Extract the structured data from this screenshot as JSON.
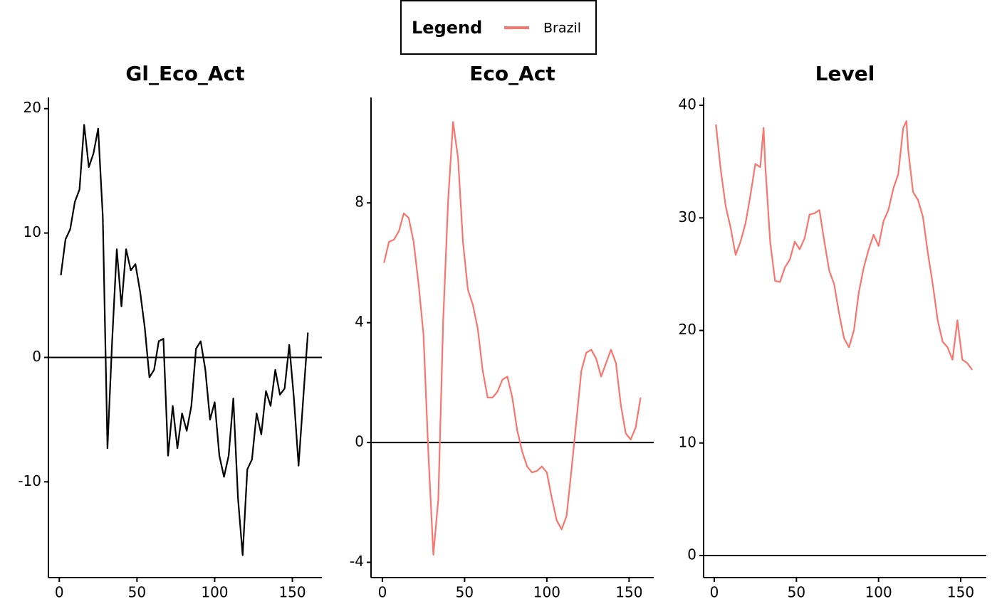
{
  "legend": {
    "title": "Legend",
    "entries": [
      {
        "name": "Brazil",
        "color": "#f8766d"
      }
    ]
  },
  "chart_data": [
    {
      "type": "line",
      "title": "Gl_Eco_Act",
      "x": [
        1,
        4,
        7,
        10,
        13,
        16,
        19,
        22,
        25,
        28,
        31,
        34,
        37,
        40,
        43,
        46,
        49,
        52,
        55,
        58,
        61,
        64,
        67,
        70,
        73,
        76,
        79,
        82,
        85,
        88,
        91,
        94,
        97,
        100,
        103,
        106,
        109,
        112,
        115,
        118,
        121,
        124,
        127,
        130,
        133,
        136,
        139,
        142,
        145,
        148,
        151,
        154,
        157,
        160
      ],
      "series": [
        {
          "color": "#000000",
          "values": [
            6.6,
            9.5,
            10.3,
            12.5,
            13.5,
            18.7,
            15.3,
            16.4,
            18.4,
            11.3,
            -7.3,
            1.3,
            8.7,
            4.1,
            8.7,
            7,
            7.5,
            5.3,
            2.4,
            -1.6,
            -1,
            1.3,
            1.5,
            -7.9,
            -3.9,
            -7.3,
            -4.5,
            -5.9,
            -3.9,
            0.7,
            1.3,
            -1,
            -5,
            -3.6,
            -7.9,
            -9.6,
            -7.9,
            -3.3,
            -11.3,
            -15.9,
            -9,
            -8.2,
            -4.5,
            -6.2,
            -2.7,
            -3.9,
            -1,
            -3,
            -2.5,
            1,
            -3.3,
            -8.7,
            -3.3,
            2
          ]
        }
      ],
      "xlim": [
        -7,
        169
      ],
      "ylim": [
        -17.7,
        20.9
      ],
      "xticks": [
        0,
        50,
        100,
        150
      ],
      "yticks": [
        -10,
        0,
        10,
        20
      ],
      "hline": 0
    },
    {
      "type": "line",
      "title": "Eco_Act",
      "x": [
        1,
        4,
        7,
        10,
        13,
        16,
        19,
        22,
        25,
        28,
        31,
        34,
        37,
        40,
        43,
        46,
        49,
        52,
        55,
        58,
        61,
        64,
        67,
        70,
        73,
        76,
        79,
        82,
        85,
        88,
        91,
        94,
        97,
        100,
        103,
        106,
        109,
        112,
        115,
        118,
        121,
        124,
        127,
        130,
        133,
        136,
        139,
        142,
        145,
        148,
        151,
        154,
        157
      ],
      "series": [
        {
          "color": "#f8766d",
          "values": [
            6.0,
            6.7,
            6.77,
            7.05,
            7.65,
            7.5,
            6.7,
            5.3,
            3.6,
            -0.4,
            -3.75,
            -1.9,
            4.1,
            8.1,
            10.7,
            9.5,
            6.7,
            5.1,
            4.6,
            3.8,
            2.4,
            1.5,
            1.5,
            1.7,
            2.1,
            2.2,
            1.5,
            0.4,
            -0.3,
            -0.8,
            -1.0,
            -0.95,
            -0.8,
            -1.0,
            -1.85,
            -2.6,
            -2.9,
            -2.45,
            -0.9,
            0.75,
            2.4,
            3.0,
            3.1,
            2.8,
            2.2,
            2.65,
            3.1,
            2.65,
            1.25,
            0.3,
            0.1,
            0.5,
            1.5
          ]
        }
      ],
      "xlim": [
        -6.9,
        165
      ],
      "ylim": [
        -4.51,
        11.52
      ],
      "xticks": [
        0,
        50,
        100,
        150
      ],
      "yticks": [
        -4,
        0,
        4,
        8
      ],
      "hline": 0
    },
    {
      "type": "line",
      "title": "Level",
      "x": [
        1,
        4,
        7,
        10,
        13,
        16,
        19,
        22,
        25,
        28,
        30,
        31,
        34,
        37,
        40,
        43,
        46,
        49,
        52,
        55,
        58,
        61,
        64,
        67,
        70,
        73,
        76,
        79,
        82,
        85,
        88,
        91,
        94,
        97,
        100,
        103,
        106,
        109,
        112,
        115,
        117,
        118,
        121,
        124,
        127,
        130,
        133,
        136,
        139,
        142,
        145,
        148,
        151,
        154,
        157
      ],
      "series": [
        {
          "color": "#f8766d",
          "values": [
            38.3,
            34.2,
            31,
            29.1,
            26.7,
            27.9,
            29.5,
            32,
            34.8,
            34.5,
            38,
            34.8,
            27.9,
            24.4,
            24.3,
            25.6,
            26.3,
            27.9,
            27.2,
            28.2,
            30.3,
            30.4,
            30.7,
            27.9,
            25.3,
            24.1,
            21.5,
            19.3,
            18.5,
            20,
            23.4,
            25.6,
            27.2,
            28.5,
            27.5,
            29.7,
            30.7,
            32.6,
            33.9,
            38,
            38.6,
            36.1,
            32.3,
            31.6,
            30.1,
            26.9,
            24.1,
            20.9,
            19,
            18.5,
            17.4,
            20.9,
            17.4,
            17.1,
            16.5
          ]
        }
      ],
      "xlim": [
        -6.5,
        165.6
      ],
      "ylim": [
        -1.96,
        40.7
      ],
      "xticks": [
        0,
        50,
        100,
        150
      ],
      "yticks": [
        0,
        10,
        20,
        30,
        40
      ],
      "hline": 0
    }
  ]
}
